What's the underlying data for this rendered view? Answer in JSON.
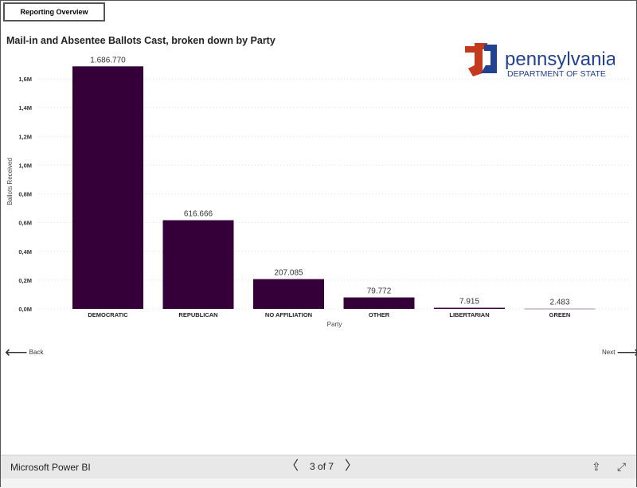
{
  "tab": {
    "label": "Reporting Overview"
  },
  "logo": {
    "name": "pennsylvania",
    "sub": "DEPARTMENT OF STATE"
  },
  "nav": {
    "back": "Back",
    "next": "Next"
  },
  "footer": {
    "brand": "Microsoft Power BI",
    "page": "3 of 7"
  },
  "colors": {
    "bar": "#35003a",
    "green_bar": "#b08aa8"
  },
  "chart_data": {
    "type": "bar",
    "title": "Mail-in and Absentee Ballots Cast, broken down by Party",
    "xlabel": "Party",
    "ylabel": "Ballots Received",
    "categories": [
      "DEMOCRATIC",
      "REPUBLICAN",
      "NO AFFILIATION",
      "OTHER",
      "LIBERTARIAN",
      "GREEN"
    ],
    "values": [
      1686770,
      616666,
      207085,
      79772,
      7915,
      2483
    ],
    "data_labels": [
      "1.686.770",
      "616.666",
      "207.085",
      "79.772",
      "7.915",
      "2.483"
    ],
    "yticks": [
      0,
      200000,
      400000,
      600000,
      800000,
      1000000,
      1200000,
      1400000,
      1600000
    ],
    "ytick_labels": [
      "0,0M",
      "0,2M",
      "0,4M",
      "0,6M",
      "0,8M",
      "1,0M",
      "1,2M",
      "1,4M",
      "1,6M"
    ],
    "ylim": [
      0,
      1600000
    ],
    "grid": true
  }
}
